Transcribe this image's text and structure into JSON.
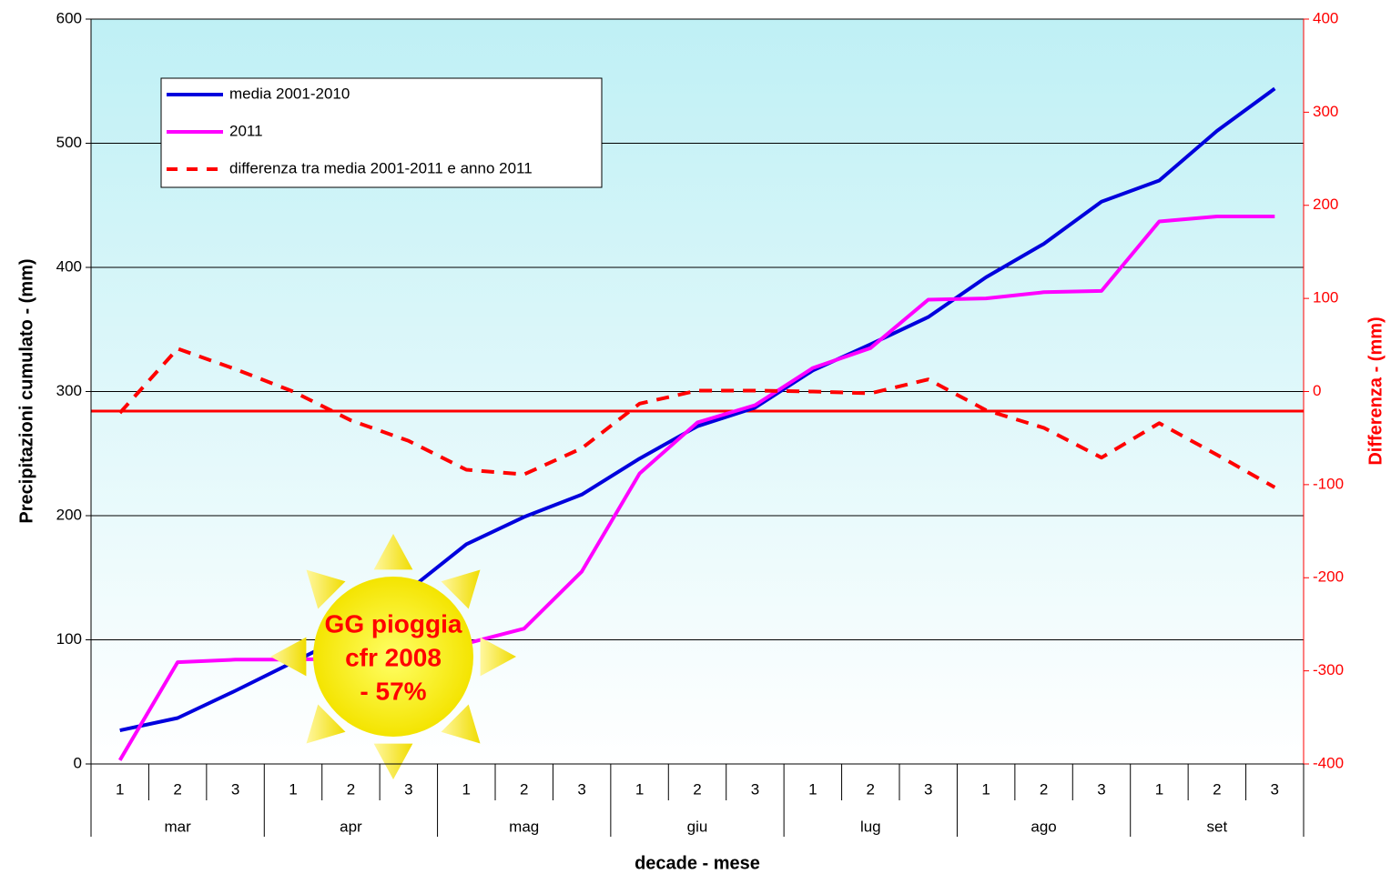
{
  "chart_data": {
    "type": "line",
    "categories": [
      "1",
      "2",
      "3",
      "1",
      "2",
      "3",
      "1",
      "2",
      "3",
      "1",
      "2",
      "3",
      "1",
      "2",
      "3",
      "1",
      "2",
      "3",
      "1",
      "2",
      "3"
    ],
    "groups": [
      "mar",
      "apr",
      "mag",
      "giu",
      "lug",
      "ago",
      "set"
    ],
    "x_label": "decade - mese",
    "y_label": "Precipitazioni cumulato - (mm)",
    "y2_label": "Differenza - (mm)",
    "ylim": [
      0,
      600
    ],
    "yticks": [
      0,
      100,
      200,
      300,
      400,
      500,
      600
    ],
    "y2lim": [
      -400,
      400
    ],
    "y2ticks": [
      -400,
      -300,
      -200,
      -100,
      0,
      100,
      200,
      300,
      400
    ],
    "grid": true,
    "series": [
      {
        "name": "media 2001-2010",
        "color": "#0000dd",
        "dash": false,
        "values": [
          27,
          37,
          59,
          82,
          105,
          140,
          177,
          199,
          217,
          246,
          272,
          287,
          317,
          338,
          360,
          392,
          419,
          453,
          470,
          510,
          544
        ]
      },
      {
        "name": "2011",
        "color": "#ff00ff",
        "dash": false,
        "values": [
          3,
          82,
          84,
          84,
          85,
          90,
          97,
          109,
          155,
          234,
          275,
          289,
          319,
          335,
          374,
          375,
          380,
          381,
          437,
          441,
          441
        ]
      },
      {
        "name": "differenza tra media 2001-2011 e anno 2011",
        "color": "#ff0000",
        "dash": true,
        "axis": "y2",
        "values": [
          -23,
          46,
          24,
          0,
          -31,
          -53,
          -84,
          -89,
          -61,
          -13,
          1,
          1,
          0,
          -2,
          13,
          -20,
          -39,
          -71,
          -34,
          -68,
          -103
        ]
      }
    ],
    "reference_line": {
      "value": -21,
      "axis": "y2",
      "color": "#ff0000"
    },
    "annotation": [
      "GG pioggia",
      "cfr 2008",
      "- 57%"
    ]
  }
}
